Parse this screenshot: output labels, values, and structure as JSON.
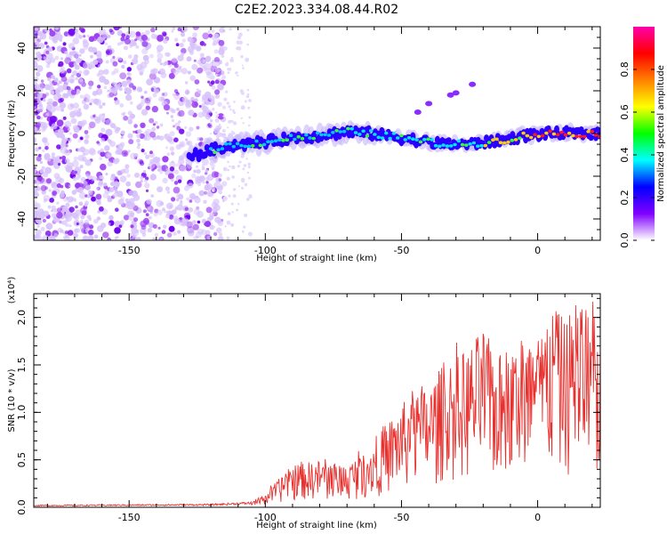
{
  "title": "C2E2.2023.334.08.44.R02",
  "chart_data": [
    {
      "type": "heatmap",
      "name": "spectrogram",
      "xlabel": "Height of straight line (km)",
      "ylabel": "Frequency (Hz)",
      "xlim": [
        -185,
        23
      ],
      "ylim": [
        -50,
        50
      ],
      "x_ticks": [
        -150,
        -100,
        -50,
        0
      ],
      "y_ticks": [
        -40,
        -20,
        0,
        20,
        40
      ],
      "colorbar": {
        "label": "Normalized spectral amplitude",
        "range": [
          0,
          1
        ],
        "ticks": [
          0.0,
          0.2,
          0.4,
          0.6,
          0.8
        ],
        "tick_labels": [
          "0.0",
          "0.2",
          "0.4",
          "0.6",
          "0.8"
        ],
        "colors": [
          "#ffffff",
          "#8000ff",
          "#0000ff",
          "#00ffff",
          "#00ff00",
          "#ffff00",
          "#ff8000",
          "#ff0000",
          "#ff00aa"
        ]
      },
      "trace": {
        "description": "signal ridge",
        "points": [
          [
            -125,
            -10
          ],
          [
            -115,
            -6
          ],
          [
            -100,
            -4
          ],
          [
            -90,
            -2
          ],
          [
            -80,
            -1
          ],
          [
            -70,
            1
          ],
          [
            -62,
            0
          ],
          [
            -55,
            -1
          ],
          [
            -45,
            -3
          ],
          [
            -35,
            -5
          ],
          [
            -25,
            -5
          ],
          [
            -18,
            -4
          ],
          [
            -12,
            -3
          ],
          [
            -5,
            -1
          ],
          [
            5,
            0
          ],
          [
            15,
            0
          ],
          [
            23,
            0
          ]
        ]
      }
    },
    {
      "type": "line",
      "name": "snr",
      "xlabel": "Height of straight line (km)",
      "ylabel": "SNR (10 * v/v)",
      "y_multiplier": "(x10⁴)",
      "xlim": [
        -185,
        23
      ],
      "ylim": [
        0,
        2.25
      ],
      "x_ticks": [
        -150,
        -100,
        -50,
        0
      ],
      "y_ticks": [
        0.0,
        0.5,
        1.0,
        1.5,
        2.0
      ],
      "y_tick_labels": [
        "0.0",
        "0.5",
        "1.0",
        "1.5",
        "2.0"
      ],
      "color": "#e8312e",
      "envelope": [
        [
          -185,
          0.02
        ],
        [
          -120,
          0.03
        ],
        [
          -105,
          0.05
        ],
        [
          -100,
          0.15
        ],
        [
          -95,
          0.3
        ],
        [
          -90,
          0.45
        ],
        [
          -80,
          0.5
        ],
        [
          -70,
          0.45
        ],
        [
          -60,
          0.7
        ],
        [
          -55,
          0.9
        ],
        [
          -50,
          1.1
        ],
        [
          -45,
          1.2
        ],
        [
          -40,
          1.3
        ],
        [
          -35,
          1.5
        ],
        [
          -30,
          1.6
        ],
        [
          -25,
          1.7
        ],
        [
          -20,
          1.9
        ],
        [
          -15,
          1.6
        ],
        [
          -10,
          1.7
        ],
        [
          -5,
          1.8
        ],
        [
          0,
          1.8
        ],
        [
          5,
          2.1
        ],
        [
          10,
          2.0
        ],
        [
          15,
          2.2
        ],
        [
          20,
          2.05
        ],
        [
          23,
          1.8
        ]
      ]
    }
  ]
}
